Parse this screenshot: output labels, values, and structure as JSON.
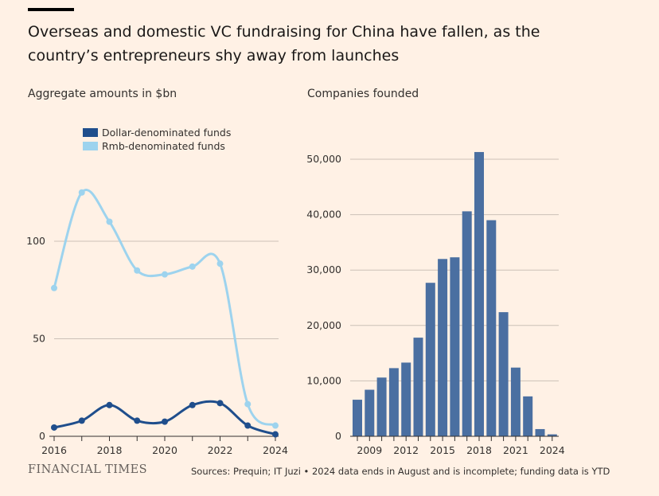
{
  "header": {
    "headline": "Overseas and domestic VC fundraising for China have fallen, as the country’s entrepreneurs shy away from launches"
  },
  "footer": {
    "logo": "FINANCIAL TIMES",
    "source": "Sources: Prequin; IT Juzi • 2024 data ends in August and is incomplete; funding data is YTD"
  },
  "colors": {
    "background": "#fff1e5",
    "dollar": "#1f4e8c",
    "rmb": "#9dd3ee",
    "bars": "#4a6fa1",
    "grid": "#ccc1b7"
  },
  "chart_data": [
    {
      "type": "line",
      "title": "Aggregate amounts in $bn",
      "x": [
        2016,
        2017,
        2018,
        2019,
        2020,
        2021,
        2022,
        2023,
        2024
      ],
      "xticks": [
        "2016",
        "2018",
        "2020",
        "2022",
        "2024"
      ],
      "yticks": [
        "0",
        "50",
        "100"
      ],
      "ylim": [
        0,
        130
      ],
      "legend": "top-left",
      "series": [
        {
          "name": "Dollar-denominated funds",
          "values": [
            4.5,
            8,
            16,
            8,
            7.5,
            16,
            17,
            5.5,
            1
          ]
        },
        {
          "name": "Rmb-denominated funds",
          "values": [
            76,
            125,
            110,
            85,
            83,
            87,
            88.5,
            16.5,
            5.5
          ]
        }
      ]
    },
    {
      "type": "bar",
      "title": "Companies founded",
      "categories": [
        2008,
        2009,
        2010,
        2011,
        2012,
        2013,
        2014,
        2015,
        2016,
        2017,
        2018,
        2019,
        2020,
        2021,
        2022,
        2023,
        2024
      ],
      "values": [
        6600,
        8400,
        10600,
        12300,
        13300,
        17800,
        27700,
        32000,
        32300,
        40600,
        51300,
        39000,
        22400,
        12400,
        7200,
        1300,
        350
      ],
      "xticks": [
        "2009",
        "2012",
        "2015",
        "2018",
        "2021",
        "2024"
      ],
      "yticks": [
        "0",
        "10,000",
        "20,000",
        "30,000",
        "40,000",
        "50,000"
      ],
      "ylim": [
        0,
        55000
      ]
    }
  ]
}
